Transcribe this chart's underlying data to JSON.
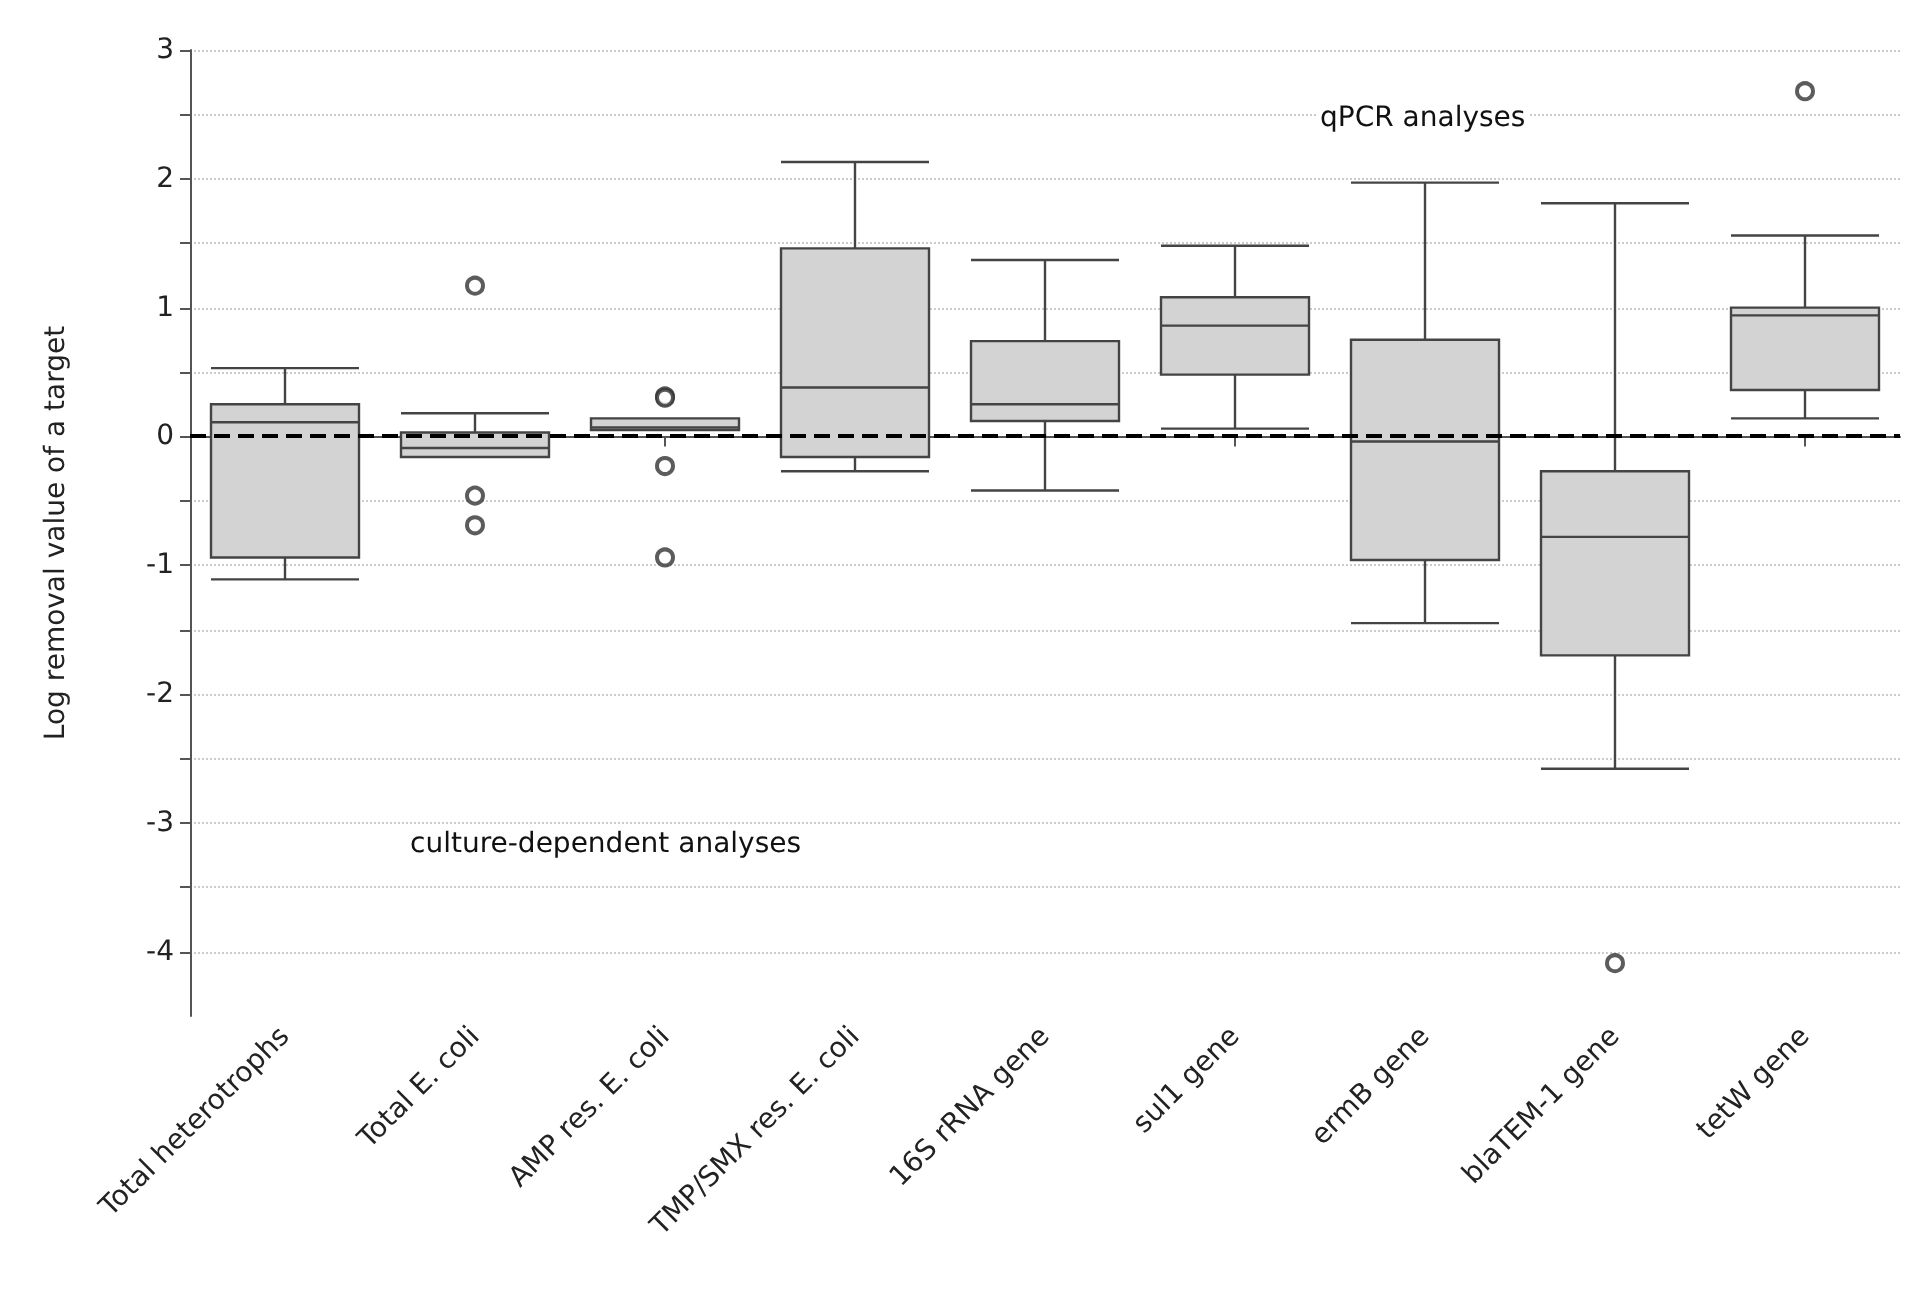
{
  "chart_data": {
    "type": "box",
    "ylabel": "Log removal value of a target",
    "categories": [
      "Total heterotrophs",
      "Total E. coli",
      "AMP res. E. coli",
      "TMP/SMX res. E. coli",
      "16S rRNA gene",
      "sul1 gene",
      "ermB gene",
      "blaTEM-1 gene",
      "tetW gene"
    ],
    "boxes": [
      {
        "low": -1.11,
        "q1": -0.94,
        "median": 0.11,
        "q3": 0.25,
        "high": 0.53
      },
      {
        "low": -0.16,
        "q1": -0.16,
        "median": -0.09,
        "q3": 0.03,
        "high": 0.18,
        "outliers": [
          1.17,
          -0.46,
          -0.69
        ]
      },
      {
        "low": 0.05,
        "q1": 0.05,
        "median": 0.07,
        "q3": 0.14,
        "high": 0.14,
        "outliers": [
          0.31,
          0.3,
          -0.23,
          -0.94
        ]
      },
      {
        "low": -0.27,
        "q1": -0.16,
        "median": 0.38,
        "q3": 1.46,
        "high": 2.13
      },
      {
        "low": -0.42,
        "q1": 0.12,
        "median": 0.25,
        "q3": 0.74,
        "high": 1.37
      },
      {
        "low": 0.06,
        "q1": 0.48,
        "median": 0.86,
        "q3": 1.08,
        "high": 1.48
      },
      {
        "low": -1.45,
        "q1": -0.96,
        "median": -0.04,
        "q3": 0.75,
        "high": 1.97
      },
      {
        "low": -2.58,
        "q1": -1.7,
        "median": -0.78,
        "q3": -0.27,
        "high": 1.81,
        "outliers": [
          -4.09
        ]
      },
      {
        "low": 0.14,
        "q1": 0.36,
        "median": 0.94,
        "q3": 1.0,
        "high": 1.56,
        "outliers": [
          2.68
        ]
      }
    ],
    "color": "#d3d3d3",
    "ylim": [
      -4.5,
      3
    ],
    "yticks": [
      -4,
      {
        "value": -3.5,
        "label": null
      },
      -3,
      {
        "value": -2.5,
        "label": null
      },
      -2,
      {
        "value": -1.5,
        "label": null
      },
      -1,
      {
        "value": -0.5,
        "label": null
      },
      0,
      {
        "value": 0.5,
        "label": null
      },
      1,
      {
        "value": 1.5,
        "label": null
      },
      2,
      {
        "value": 2.5,
        "label": null
      },
      3
    ],
    "grid": "y",
    "ref_lines": [
      {
        "axis": "y",
        "value": 0,
        "color": "#000000",
        "line_style": "dashed"
      }
    ],
    "annotations": [
      "culture-dependent analyses",
      "qPCR analyses"
    ]
  }
}
